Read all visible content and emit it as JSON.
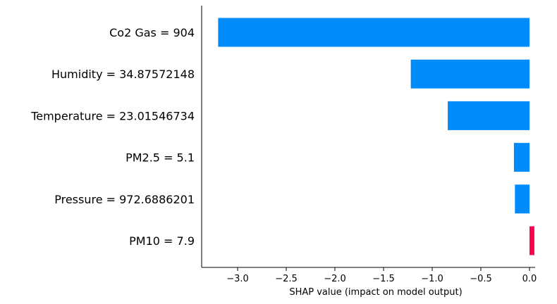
{
  "chart_data": {
    "type": "bar",
    "orientation": "horizontal",
    "categories": [
      "Co2 Gas = 904",
      "Humidity = 34.87572148",
      "Temperature = 23.01546734",
      "PM2.5 = 5.1",
      "Pressure = 972.6886201",
      "PM10 = 7.9"
    ],
    "values": [
      -3.2,
      -1.22,
      -0.84,
      -0.16,
      -0.15,
      0.05
    ],
    "xlabel": "SHAP value (impact on model output)",
    "ylabel": "",
    "xlim": [
      -3.35,
      0.05
    ],
    "xticks": [
      -3.0,
      -2.5,
      -2.0,
      -1.5,
      -1.0,
      -0.5,
      0.0
    ],
    "xtick_labels": [
      "−3.0",
      "−2.5",
      "−2.0",
      "−1.5",
      "−1.0",
      "−0.5",
      "0.0"
    ],
    "colors": {
      "negative": "#008bfb",
      "positive": "#ff0051"
    },
    "grid": false,
    "legend": "none"
  }
}
